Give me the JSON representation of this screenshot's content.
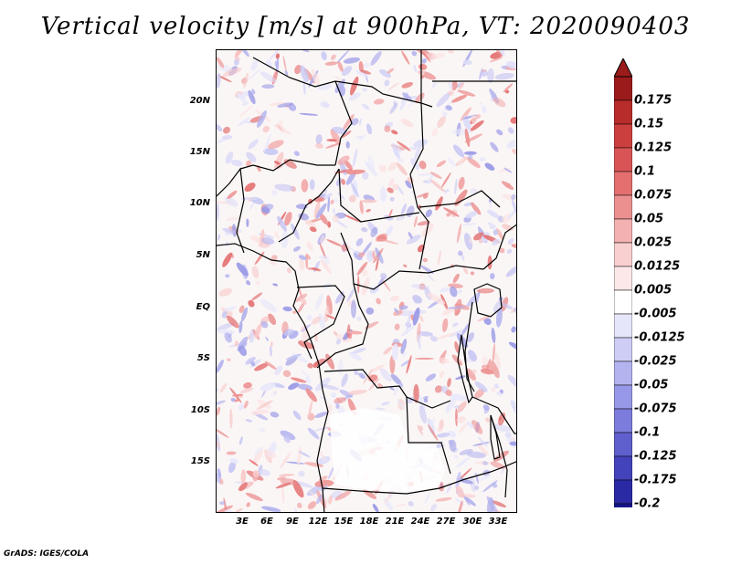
{
  "title": "Vertical velocity [m/s] at 900hPa, VT: 2020090403",
  "credit": "GrADS: IGES/COLA",
  "lat_ticks": [
    "20N",
    "15N",
    "10N",
    "5N",
    "EQ",
    "5S",
    "10S",
    "15S"
  ],
  "lon_ticks": [
    "3E",
    "6E",
    "9E",
    "12E",
    "15E",
    "18E",
    "21E",
    "24E",
    "27E",
    "30E",
    "33E"
  ],
  "colorbar": {
    "labels": [
      "0.175",
      "0.15",
      "0.125",
      "0.1",
      "0.075",
      "0.05",
      "0.025",
      "0.0125",
      "0.005",
      "-0.005",
      "-0.0125",
      "-0.025",
      "-0.05",
      "-0.075",
      "-0.1",
      "-0.125",
      "-0.175",
      "-0.2"
    ],
    "colors": [
      "#9b1b1b",
      "#b82c2c",
      "#cc3f3f",
      "#d95555",
      "#e36f6f",
      "#ec8f8f",
      "#f4b1b1",
      "#f9cfcf",
      "#fce8e8",
      "#ffffff",
      "#e6e6fb",
      "#cdcdf6",
      "#b3b3f0",
      "#9898e8",
      "#7c7cdc",
      "#5f5fcd",
      "#4343bb",
      "#2a2aa4",
      "#17178a"
    ],
    "arrow_top": "#9b1b1b",
    "arrow_bottom": "#1a1a8e"
  }
}
